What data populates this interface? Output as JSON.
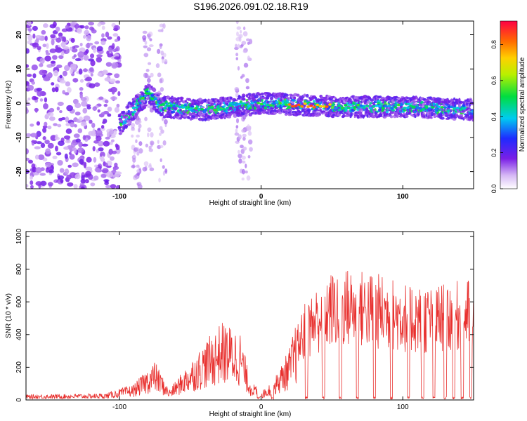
{
  "title": "S196.2026.091.02.18.R19",
  "chart_data": [
    {
      "type": "heatmap",
      "title": "S196.2026.091.02.18.R19",
      "xlabel": "Height of straight line (km)",
      "ylabel": "Frequency (Hz)",
      "xlim": [
        -166,
        150
      ],
      "ylim": [
        -25,
        24
      ],
      "xticks": [
        -100,
        0,
        100
      ],
      "yticks": [
        -20,
        -10,
        0,
        10,
        20
      ],
      "colorbar": {
        "label": "Normalized spectral amplitude",
        "range": [
          0,
          0.93
        ],
        "ticks": [
          "0.0",
          "0.2",
          "0.4",
          "0.6",
          "0.8"
        ],
        "tick_values": [
          0.0,
          0.2,
          0.4,
          0.6,
          0.8
        ]
      },
      "signal_track": {
        "description_values_hz": [
          [
            -95,
            -4
          ],
          [
            -80,
            3
          ],
          [
            -70,
            -1
          ],
          [
            -40,
            -2
          ],
          [
            -20,
            -1
          ],
          [
            0,
            0
          ],
          [
            50,
            -1
          ],
          [
            100,
            -1
          ],
          [
            150,
            -2
          ]
        ],
        "peak_x_range_km": [
          20,
          50
        ]
      }
    },
    {
      "type": "line",
      "xlabel": "Height of straight line (km)",
      "ylabel": "SNR (10 * v/v)",
      "xlim": [
        -166,
        150
      ],
      "ylim": [
        0,
        1030
      ],
      "xticks": [
        -100,
        0,
        100
      ],
      "yticks": [
        0,
        200,
        400,
        600,
        800,
        1000
      ],
      "series": [
        {
          "name": "SNR",
          "color": "#e8302e",
          "envelope_points": [
            {
              "x": -166,
              "y": 20
            },
            {
              "x": -110,
              "y": 25
            },
            {
              "x": -90,
              "y": 60
            },
            {
              "x": -75,
              "y": 150
            },
            {
              "x": -65,
              "y": 40
            },
            {
              "x": -40,
              "y": 220
            },
            {
              "x": -28,
              "y": 300
            },
            {
              "x": -15,
              "y": 270
            },
            {
              "x": -8,
              "y": 80
            },
            {
              "x": 0,
              "y": 30
            },
            {
              "x": 10,
              "y": 90
            },
            {
              "x": 20,
              "y": 200
            },
            {
              "x": 30,
              "y": 420
            },
            {
              "x": 45,
              "y": 550
            },
            {
              "x": 60,
              "y": 580
            },
            {
              "x": 80,
              "y": 560
            },
            {
              "x": 100,
              "y": 520
            },
            {
              "x": 120,
              "y": 500
            },
            {
              "x": 150,
              "y": 540
            }
          ]
        }
      ]
    }
  ]
}
